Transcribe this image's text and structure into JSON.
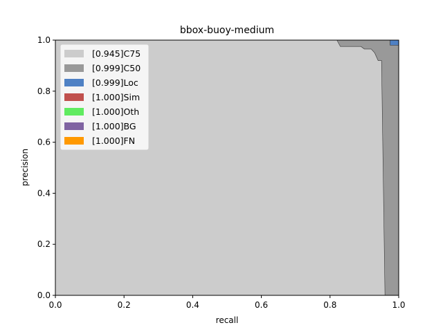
{
  "chart_data": {
    "type": "area",
    "title": "bbox-buoy-medium",
    "xlabel": "recall",
    "ylabel": "precision",
    "xlim": [
      0,
      1
    ],
    "ylim": [
      0,
      1
    ],
    "x_ticks": [
      "0.0",
      "0.2",
      "0.4",
      "0.6",
      "0.8",
      "1.0"
    ],
    "y_ticks": [
      "0.0",
      "0.2",
      "0.4",
      "0.6",
      "0.8",
      "1.0"
    ],
    "grid": false,
    "legend_position": "upper-left",
    "series": [
      {
        "name": "[0.945]C75",
        "color": "#cccccc",
        "x": [
          0,
          0.82,
          0.83,
          0.89,
          0.9,
          0.92,
          0.93,
          0.94,
          0.95,
          0.96,
          0.96
        ],
        "y": [
          1.0,
          1.0,
          0.975,
          0.975,
          0.965,
          0.965,
          0.95,
          0.92,
          0.92,
          0.0,
          0.0
        ]
      },
      {
        "name": "[0.999]C50",
        "color": "#999999",
        "x": [
          0,
          0.975,
          0.975,
          1.0,
          1.0
        ],
        "y": [
          1.0,
          1.0,
          0.98,
          0.98,
          0.0
        ]
      },
      {
        "name": "[0.999]Loc",
        "color": "#4f81c4",
        "x": [
          0,
          1.0,
          1.0
        ],
        "y": [
          1.0,
          1.0,
          0.98
        ]
      },
      {
        "name": "[1.000]Sim",
        "color": "#c0504d",
        "x": [
          0,
          0.975,
          0.975,
          1.0,
          1.0
        ],
        "y": [
          1.0,
          1.0,
          1.0,
          1.0,
          0.98
        ]
      },
      {
        "name": "[1.000]Oth",
        "color": "#60eb60",
        "x": [
          0,
          1.0
        ],
        "y": [
          1.0,
          1.0
        ]
      },
      {
        "name": "[1.000]BG",
        "color": "#8064a2",
        "x": [
          0,
          1.0
        ],
        "y": [
          1.0,
          1.0
        ]
      },
      {
        "name": "[1.000]FN",
        "color": "#ff9900",
        "x": [
          0,
          1.0
        ],
        "y": [
          1.0,
          1.0
        ]
      }
    ]
  }
}
